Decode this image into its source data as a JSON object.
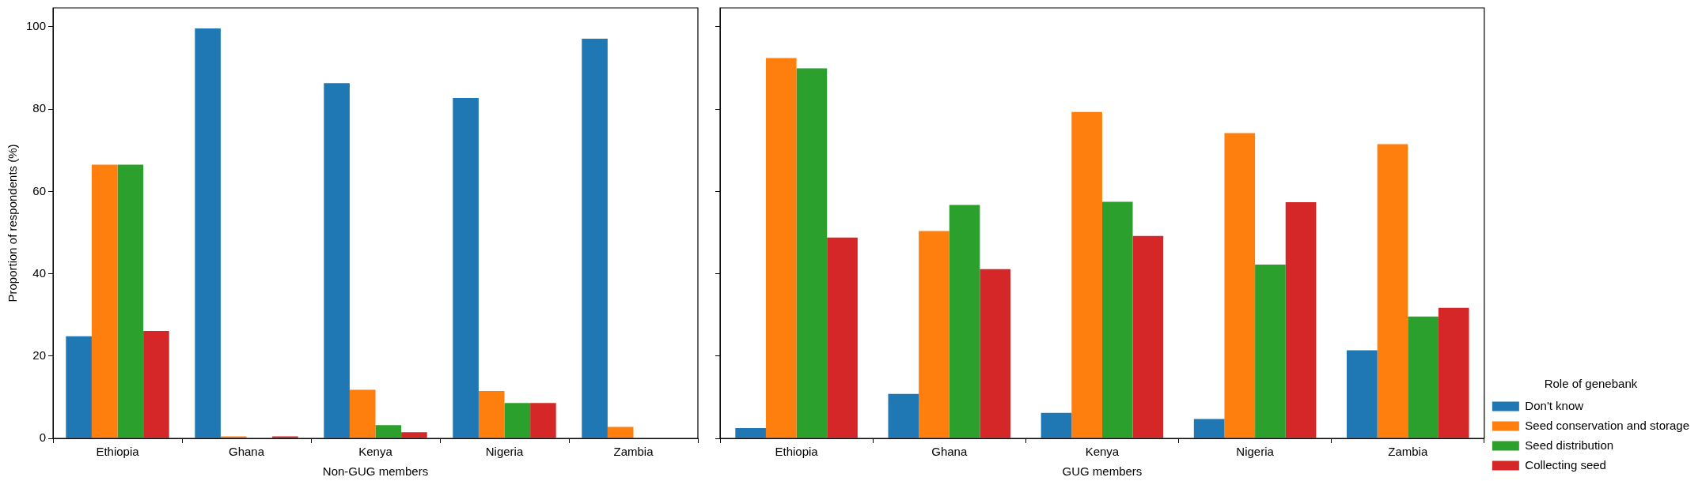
{
  "chart_data": [
    {
      "type": "bar",
      "xlabel": "Non-GUG members",
      "ylabel": "Proportion of respondents (%)",
      "categories": [
        "Ethiopia",
        "Ghana",
        "Kenya",
        "Nigeria",
        "Zambia"
      ],
      "series": [
        {
          "color": "#1f77b4",
          "values": [
            24.8,
            99.6,
            86.3,
            82.7,
            97.1
          ]
        },
        {
          "color": "#ff7f0e",
          "values": [
            66.5,
            0.5,
            11.8,
            11.5,
            2.8
          ]
        },
        {
          "color": "#2ca02c",
          "values": [
            66.5,
            0,
            3.2,
            8.6,
            0
          ]
        },
        {
          "color": "#d62728",
          "values": [
            26.1,
            0.5,
            1.5,
            8.6,
            0
          ]
        }
      ],
      "ylim": [
        0,
        104.6
      ],
      "yticks": [
        0,
        20,
        40,
        60,
        80,
        100
      ],
      "grid": false,
      "legend": false
    },
    {
      "type": "bar",
      "xlabel": "GUG members",
      "legend_title": "Role of genebank",
      "categories": [
        "Ethiopia",
        "Ghana",
        "Kenya",
        "Nigeria",
        "Zambia"
      ],
      "series": [
        {
          "name": "Don't know",
          "color": "#1f77b4",
          "values": [
            2.5,
            10.8,
            6.2,
            4.7,
            21.4
          ]
        },
        {
          "name": "Seed conservation and storage",
          "color": "#ff7f0e",
          "values": [
            92.4,
            50.4,
            79.3,
            74.2,
            71.5
          ]
        },
        {
          "name": "Seed distribution",
          "color": "#2ca02c",
          "values": [
            89.9,
            56.7,
            57.5,
            42.2,
            29.6
          ]
        },
        {
          "name": "Collecting seed",
          "color": "#d62728",
          "values": [
            48.8,
            41.1,
            49.2,
            57.4,
            31.7
          ]
        }
      ],
      "ylim": [
        0,
        104.6
      ],
      "yticks": [
        0,
        20,
        40,
        60,
        80,
        100
      ],
      "grid": false,
      "legend": "bottom right",
      "tick_labels": "x"
    }
  ]
}
